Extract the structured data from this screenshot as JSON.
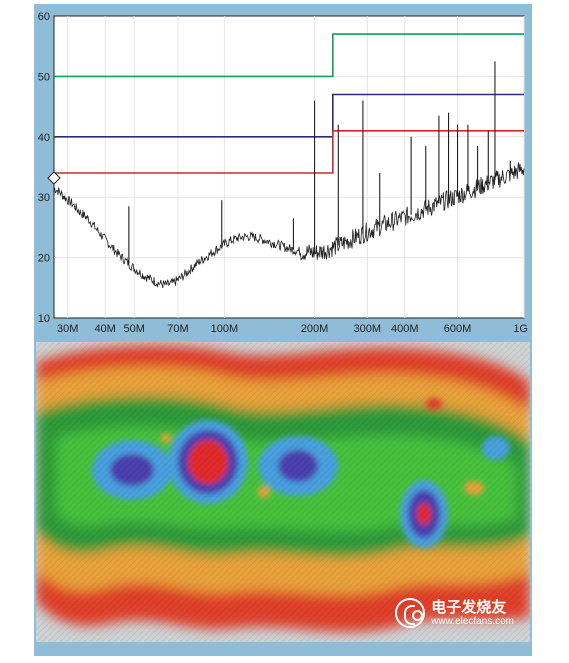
{
  "chart_data": [
    {
      "type": "line",
      "title": "",
      "xlabel": "",
      "ylabel": "",
      "x_scale": "log",
      "xlim": [
        27,
        1000
      ],
      "ylim": [
        10,
        60
      ],
      "grid": true,
      "x_ticks": [
        {
          "value": 30,
          "label": "30M"
        },
        {
          "value": 40,
          "label": "40M"
        },
        {
          "value": 50,
          "label": "50M"
        },
        {
          "value": 70,
          "label": "70M"
        },
        {
          "value": 100,
          "label": "100M"
        },
        {
          "value": 200,
          "label": "200M"
        },
        {
          "value": 300,
          "label": "300M"
        },
        {
          "value": 400,
          "label": "400M"
        },
        {
          "value": 600,
          "label": "600M"
        },
        {
          "value": 1000,
          "label": "1G"
        }
      ],
      "y_ticks": [
        {
          "value": 10,
          "label": "10"
        },
        {
          "value": 20,
          "label": "20"
        },
        {
          "value": 30,
          "label": "30"
        },
        {
          "value": 40,
          "label": "40"
        },
        {
          "value": 50,
          "label": "50"
        },
        {
          "value": 60,
          "label": "60"
        }
      ],
      "limit_lines": [
        {
          "color": "#1a9a5a",
          "points": [
            [
              27,
              50
            ],
            [
              230,
              50
            ],
            [
              230,
              57
            ],
            [
              1000,
              57
            ]
          ]
        },
        {
          "color": "#2c2a7a",
          "points": [
            [
              27,
              40
            ],
            [
              230,
              40
            ],
            [
              230,
              47
            ],
            [
              1000,
              47
            ]
          ]
        },
        {
          "color": "#cc2a2a",
          "points": [
            [
              27,
              34
            ],
            [
              230,
              34
            ],
            [
              230,
              41
            ],
            [
              1000,
              41
            ]
          ]
        }
      ],
      "series": [
        {
          "color": "#1f1f1f",
          "x": [
            27,
            28,
            29,
            30,
            31,
            32,
            33,
            34,
            35,
            36,
            37,
            38,
            40,
            42,
            44,
            46,
            48,
            50,
            52,
            54,
            56,
            58,
            60,
            62,
            64,
            66,
            68,
            70,
            73,
            76,
            80,
            84,
            88,
            92,
            96,
            100,
            105,
            110,
            115,
            120,
            125,
            130,
            140,
            150,
            160,
            170,
            180,
            190,
            200,
            210,
            220,
            230,
            240,
            250,
            260,
            280,
            300,
            320,
            340,
            360,
            380,
            400,
            430,
            460,
            500,
            540,
            580,
            620,
            660,
            700,
            750,
            800,
            850,
            900,
            950,
            1000
          ],
          "values": [
            31.5,
            31.0,
            30.2,
            29.5,
            29.0,
            28.2,
            27.5,
            27.0,
            26.5,
            25.8,
            25.0,
            24.3,
            23.0,
            21.8,
            20.7,
            19.8,
            19.0,
            18.2,
            17.6,
            17.0,
            16.6,
            16.2,
            15.8,
            15.6,
            15.5,
            15.6,
            15.9,
            16.3,
            17.0,
            17.8,
            18.8,
            19.6,
            20.3,
            21.0,
            21.6,
            22.2,
            22.8,
            23.2,
            23.4,
            23.5,
            23.4,
            23.2,
            22.7,
            22.2,
            21.7,
            21.3,
            21.0,
            20.9,
            20.8,
            21.0,
            21.3,
            21.7,
            22.0,
            22.4,
            22.8,
            23.6,
            24.3,
            24.9,
            25.4,
            25.9,
            26.3,
            26.7,
            27.3,
            27.9,
            28.6,
            29.3,
            29.9,
            30.5,
            31.1,
            31.6,
            32.2,
            32.8,
            33.3,
            33.8,
            34.3,
            34.8
          ]
        }
      ],
      "peaks": [
        {
          "x": 48,
          "y": 28.5
        },
        {
          "x": 98,
          "y": 29.5
        },
        {
          "x": 170,
          "y": 26.5
        },
        {
          "x": 200,
          "y": 46
        },
        {
          "x": 240,
          "y": 42
        },
        {
          "x": 290,
          "y": 46
        },
        {
          "x": 330,
          "y": 34
        },
        {
          "x": 420,
          "y": 40
        },
        {
          "x": 470,
          "y": 38.5
        },
        {
          "x": 520,
          "y": 43.5
        },
        {
          "x": 560,
          "y": 44
        },
        {
          "x": 600,
          "y": 42
        },
        {
          "x": 650,
          "y": 42
        },
        {
          "x": 700,
          "y": 38.5
        },
        {
          "x": 760,
          "y": 41
        },
        {
          "x": 800,
          "y": 52.5
        },
        {
          "x": 900,
          "y": 36
        }
      ]
    },
    {
      "type": "heatmap",
      "title": "",
      "colors": {
        "background": "#cfd3d6",
        "level_1": "#e0402a",
        "level_2": "#e9a23a",
        "level_3": "#2f9a3b",
        "level_4": "#46c23e",
        "level_5": "#4aa0e0",
        "level_6": "#4b3fae",
        "level_7": "#e22a2a"
      }
    }
  ],
  "watermark": {
    "name": "电子发烧友",
    "url": "www.elecfans.com"
  }
}
